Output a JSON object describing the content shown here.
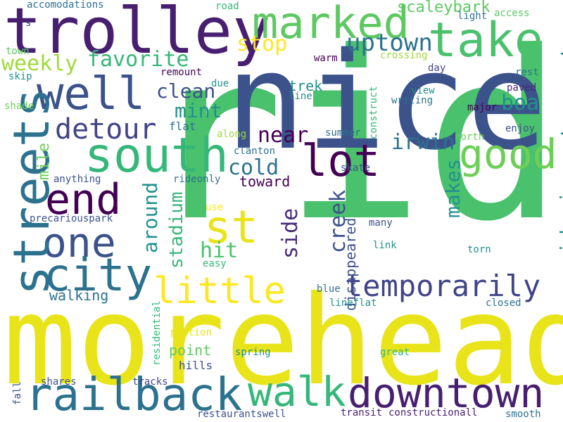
{
  "words": [
    {
      "text": "ride",
      "color": "#4ac16d",
      "vertical": false
    },
    {
      "text": "morehead",
      "color": "#e8e419",
      "vertical": false
    },
    {
      "text": "nice",
      "color": "#3b528b",
      "vertical": false
    },
    {
      "text": "trolley",
      "color": "#481f70",
      "vertical": false
    },
    {
      "text": "take",
      "color": "#4ac16d",
      "vertical": false
    },
    {
      "text": "marked",
      "color": "#5ec962",
      "vertical": false
    },
    {
      "text": "well",
      "color": "#3b528b",
      "vertical": false
    },
    {
      "text": "south",
      "color": "#35b779",
      "vertical": false
    },
    {
      "text": "lot",
      "color": "#440154",
      "vertical": false
    },
    {
      "text": "good",
      "color": "#6ece58",
      "vertical": false
    },
    {
      "text": "end",
      "color": "#440154",
      "vertical": false
    },
    {
      "text": "one",
      "color": "#3b528b",
      "vertical": false
    },
    {
      "text": "city",
      "color": "#2c728e",
      "vertical": false
    },
    {
      "text": "st",
      "color": "#e8e419",
      "vertical": false
    },
    {
      "text": "streets",
      "color": "#2c728e",
      "vertical": true
    },
    {
      "text": "railback",
      "color": "#2c728e",
      "vertical": false
    },
    {
      "text": "walk",
      "color": "#35b779",
      "vertical": false
    },
    {
      "text": "downtown",
      "color": "#481f70",
      "vertical": false
    },
    {
      "text": "little",
      "color": "#fde725",
      "vertical": false
    },
    {
      "text": "temporarily",
      "color": "#414487",
      "vertical": false
    },
    {
      "text": "detour",
      "color": "#414487",
      "vertical": false
    },
    {
      "text": "uptown",
      "color": "#2c728e",
      "vertical": false
    },
    {
      "text": "favorite",
      "color": "#35b779",
      "vertical": false
    },
    {
      "text": "weekly",
      "color": "#9fda3a",
      "vertical": false
    },
    {
      "text": "stop",
      "color": "#fde725",
      "vertical": false
    },
    {
      "text": "clean",
      "color": "#3b528b",
      "vertical": false
    },
    {
      "text": "mint",
      "color": "#21918c",
      "vertical": false
    },
    {
      "text": "near",
      "color": "#440154",
      "vertical": false
    },
    {
      "text": "irwin",
      "color": "#2c728e",
      "vertical": false
    },
    {
      "text": "cold",
      "color": "#2c728e",
      "vertical": false
    },
    {
      "text": "hit",
      "color": "#4ac16d",
      "vertical": false
    },
    {
      "text": "scaleybark",
      "color": "#5ec962",
      "vertical": false
    },
    {
      "text": "boa",
      "color": "#21918c",
      "vertical": false
    },
    {
      "text": "breweries",
      "color": "#21918c",
      "vertical": true
    },
    {
      "text": "makes",
      "color": "#21918c",
      "vertical": true
    },
    {
      "text": "ridenice",
      "color": "#21918c",
      "vertical": true
    },
    {
      "text": "traveled",
      "color": "#21918c",
      "vertical": true
    },
    {
      "text": "creek",
      "color": "#3b528b",
      "vertical": true
    },
    {
      "text": "side",
      "color": "#472d7b",
      "vertical": true
    },
    {
      "text": "stadium",
      "color": "#35b779",
      "vertical": true
    },
    {
      "text": "around",
      "color": "#21918c",
      "vertical": true
    },
    {
      "text": "mile",
      "color": "#6ece58",
      "vertical": true
    },
    {
      "text": "disappeared",
      "color": "#3b528b",
      "vertical": true
    },
    {
      "text": "walking",
      "color": "#2c728e",
      "vertical": false
    },
    {
      "text": "point",
      "color": "#5ec962",
      "vertical": false
    },
    {
      "text": "hills",
      "color": "#3b528b",
      "vertical": false
    },
    {
      "text": "toward",
      "color": "#440154",
      "vertical": false
    },
    {
      "text": "trek",
      "color": "#21918c",
      "vertical": false
    },
    {
      "text": "flat",
      "color": "#2c728e",
      "vertical": false
    },
    {
      "text": "accomodations",
      "color": "#2c728e",
      "vertical": false
    },
    {
      "text": "road",
      "color": "#35b779",
      "vertical": false
    },
    {
      "text": "light",
      "color": "#2c728e",
      "vertical": false
    },
    {
      "text": "access",
      "color": "#5ec962",
      "vertical": false
    },
    {
      "text": "skip",
      "color": "#21918c",
      "vertical": false
    },
    {
      "text": "s",
      "color": "#472d7b",
      "vertical": false
    },
    {
      "text": "town",
      "color": "#5ec962",
      "vertical": false
    },
    {
      "text": "warm",
      "color": "#440154",
      "vertical": false
    },
    {
      "text": "crossing",
      "color": "#9fda3a",
      "vertical": false
    },
    {
      "text": "remount",
      "color": "#440154",
      "vertical": false
    },
    {
      "text": "due",
      "color": "#21918c",
      "vertical": false
    },
    {
      "text": "day",
      "color": "#414487",
      "vertical": false
    },
    {
      "text": "rest",
      "color": "#2c728e",
      "vertical": false
    },
    {
      "text": "paved",
      "color": "#482878",
      "vertical": false
    },
    {
      "text": "view",
      "color": "#21918c",
      "vertical": false
    },
    {
      "text": "writing",
      "color": "#2c728e",
      "vertical": false
    },
    {
      "text": "line",
      "color": "#21918c",
      "vertical": false
    },
    {
      "text": "major",
      "color": "#440154",
      "vertical": false
    },
    {
      "text": "shade",
      "color": "#6ece58",
      "vertical": false
    },
    {
      "text": "summer",
      "color": "#2c728e",
      "vertical": false
    },
    {
      "text": "enjoy",
      "color": "#3b528b",
      "vertical": false
    },
    {
      "text": "north",
      "color": "#6ece58",
      "vertical": false
    },
    {
      "text": "along",
      "color": "#9fda3a",
      "vertical": false
    },
    {
      "text": "clanton",
      "color": "#2c728e",
      "vertical": false
    },
    {
      "text": "skate",
      "color": "#3b528b",
      "vertical": false
    },
    {
      "text": "construct",
      "color": "#35b779",
      "vertical": true
    },
    {
      "text": "anything",
      "color": "#3b528b",
      "vertical": false
    },
    {
      "text": "rideonly",
      "color": "#2c728e",
      "vertical": false
    },
    {
      "text": "precariouspark",
      "color": "#3b528b",
      "vertical": false
    },
    {
      "text": "use",
      "color": "#fde725",
      "vertical": false
    },
    {
      "text": "many",
      "color": "#3b528b",
      "vertical": false
    },
    {
      "text": "easy",
      "color": "#35b779",
      "vertical": false
    },
    {
      "text": "link",
      "color": "#21918c",
      "vertical": false
    },
    {
      "text": "torn",
      "color": "#21918c",
      "vertical": false
    },
    {
      "text": "blue",
      "color": "#2c728e",
      "vertical": false
    },
    {
      "text": "lineflat",
      "color": "#21918c",
      "vertical": false
    },
    {
      "text": "closed",
      "color": "#2c728e",
      "vertical": false
    },
    {
      "text": "residential",
      "color": "#35b779",
      "vertical": true
    },
    {
      "text": "portion",
      "color": "#e8e419",
      "vertical": false
    },
    {
      "text": "spring",
      "color": "#21918c",
      "vertical": false
    },
    {
      "text": "great",
      "color": "#35b779",
      "vertical": false
    },
    {
      "text": "shares",
      "color": "#3b528b",
      "vertical": false
    },
    {
      "text": "tracks",
      "color": "#414487",
      "vertical": false
    },
    {
      "text": "fall",
      "color": "#3b528b",
      "vertical": true
    },
    {
      "text": "restaurantswell",
      "color": "#3b528b",
      "vertical": false
    },
    {
      "text": "transit",
      "color": "#481f70",
      "vertical": false
    },
    {
      "text": "constructionall",
      "color": "#481f70",
      "vertical": false
    },
    {
      "text": "smooth",
      "color": "#2c728e",
      "vertical": false
    }
  ]
}
